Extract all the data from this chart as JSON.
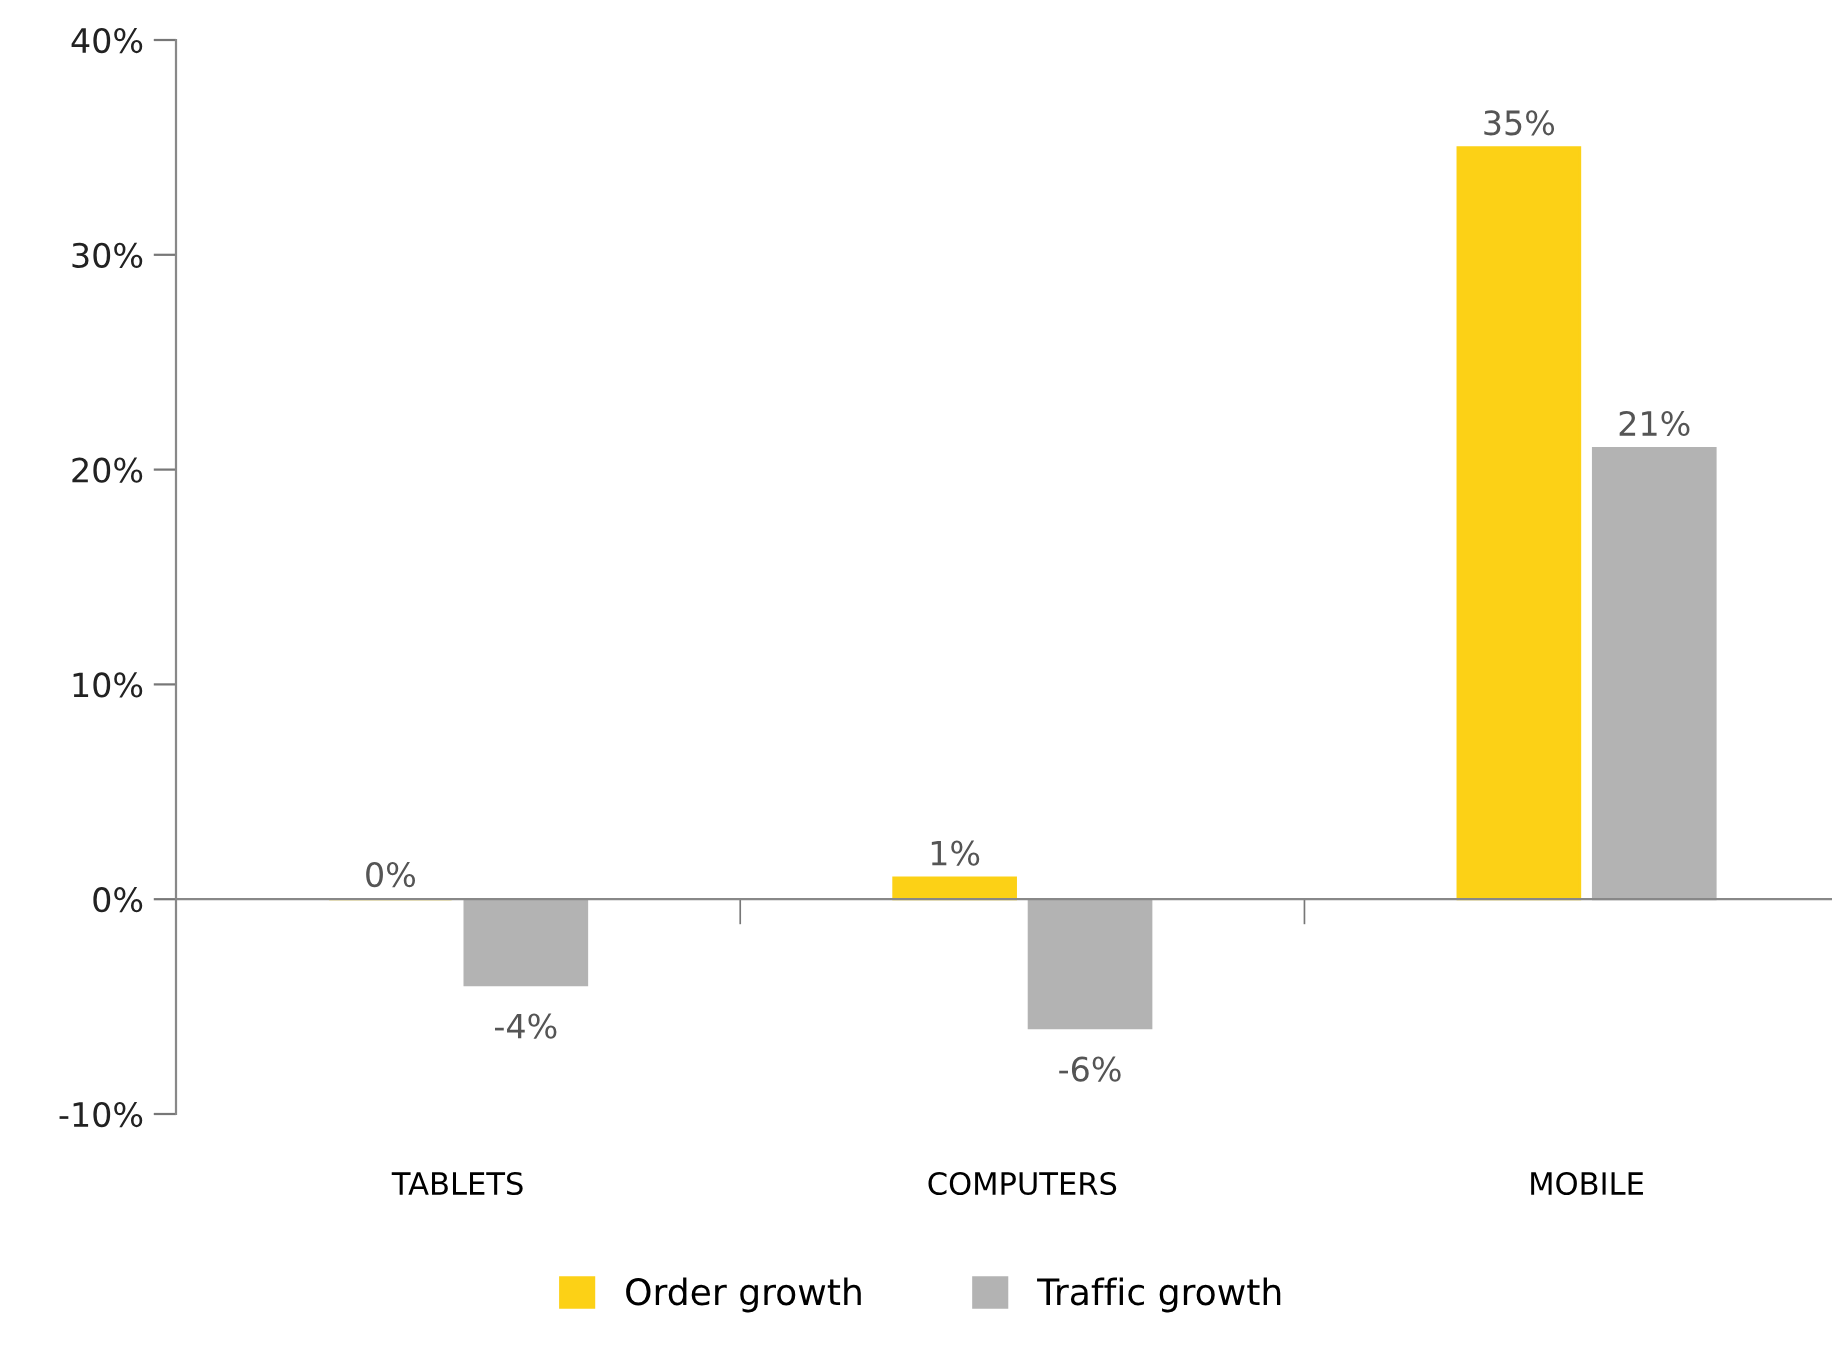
{
  "chart_data": {
    "type": "bar",
    "categories": [
      "TABLETS",
      "COMPUTERS",
      "MOBILE"
    ],
    "series": [
      {
        "name": "Order growth",
        "color": "#fcd116",
        "values": [
          0,
          1,
          35
        ],
        "value_labels": [
          "0%",
          "1%",
          "35%"
        ]
      },
      {
        "name": "Traffic growth",
        "color": "#b3b3b3",
        "values": [
          -4,
          -6,
          21
        ],
        "value_labels": [
          "-4%",
          "-6%",
          "21%"
        ]
      }
    ],
    "ylim": [
      -10,
      40
    ],
    "yticks": [
      {
        "value": -10,
        "label": "-10%"
      },
      {
        "value": 0,
        "label": "0%"
      },
      {
        "value": 10,
        "label": "10%"
      },
      {
        "value": 20,
        "label": "20%"
      },
      {
        "value": 30,
        "label": "30%"
      },
      {
        "value": 40,
        "label": "40%"
      }
    ],
    "legend": "bottom"
  }
}
